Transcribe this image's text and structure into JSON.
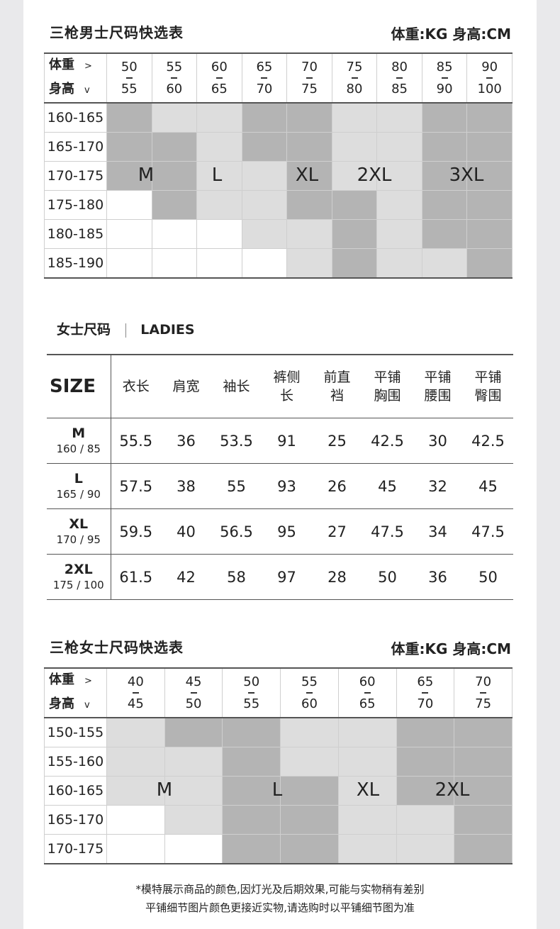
{
  "men": {
    "title": "三枪男士尺码快选表",
    "unit": "体重:KG 身高:CM",
    "weight_label": "体重",
    "height_label": "身高",
    "weight_arrow": ">",
    "height_arrow": "v",
    "weights": [
      [
        "50",
        "55"
      ],
      [
        "55",
        "60"
      ],
      [
        "60",
        "65"
      ],
      [
        "65",
        "70"
      ],
      [
        "70",
        "75"
      ],
      [
        "75",
        "80"
      ],
      [
        "80",
        "85"
      ],
      [
        "85",
        "90"
      ],
      [
        "90",
        "100"
      ]
    ],
    "heights": [
      "160-165",
      "165-170",
      "170-175",
      "175-180",
      "180-185",
      "185-190"
    ],
    "shades": [
      "DLLDDLLDD",
      "DDLDDLLDD",
      "DDLLDLLDD",
      "WDLLDDLDD",
      "WWWLLDLDD",
      "WWWWLDLLD"
    ],
    "sizes": [
      "M",
      "L",
      "XL",
      "2XL",
      "3XL"
    ]
  },
  "ladies": {
    "title": "女士尺码",
    "title_en": "LADIES",
    "size_header": "SIZE",
    "columns": [
      "衣长",
      "肩宽",
      "袖长",
      "裤侧\n长",
      "前直\n裆",
      "平铺\n胸围",
      "平铺\n腰围",
      "平铺\n臀围"
    ],
    "rows": [
      {
        "size": "M",
        "fit": "160 / 85",
        "values": [
          "55.5",
          "36",
          "53.5",
          "91",
          "25",
          "42.5",
          "30",
          "42.5"
        ]
      },
      {
        "size": "L",
        "fit": "165 / 90",
        "values": [
          "57.5",
          "38",
          "55",
          "93",
          "26",
          "45",
          "32",
          "45"
        ]
      },
      {
        "size": "XL",
        "fit": "170 / 95",
        "values": [
          "59.5",
          "40",
          "56.5",
          "95",
          "27",
          "47.5",
          "34",
          "47.5"
        ]
      },
      {
        "size": "2XL",
        "fit": "175 / 100",
        "values": [
          "61.5",
          "42",
          "58",
          "97",
          "28",
          "50",
          "36",
          "50"
        ]
      }
    ]
  },
  "women": {
    "title": "三枪女士尺码快选表",
    "unit": "体重:KG 身高:CM",
    "weight_label": "体重",
    "height_label": "身高",
    "weight_arrow": ">",
    "height_arrow": "v",
    "weights": [
      [
        "40",
        "45"
      ],
      [
        "45",
        "50"
      ],
      [
        "50",
        "55"
      ],
      [
        "55",
        "60"
      ],
      [
        "60",
        "65"
      ],
      [
        "65",
        "70"
      ],
      [
        "70",
        "75"
      ]
    ],
    "heights": [
      "150-155",
      "155-160",
      "160-165",
      "165-170",
      "170-175"
    ],
    "shades": [
      "LDDLLDD",
      "LLDLLDD",
      "LLDDLDD",
      "WLDDLLD",
      "WWDDLLD"
    ],
    "sizes": [
      "M",
      "L",
      "XL",
      "2XL"
    ]
  },
  "colors": {
    "dark": "#b4b4b4",
    "light": "#dddddd",
    "white": "#ffffff"
  },
  "footer": [
    "*模特展示商品的颜色,因灯光及后期效果,可能与实物稍有差别",
    "平铺细节图片颜色更接近实物,请选购时以平铺细节图为准"
  ]
}
